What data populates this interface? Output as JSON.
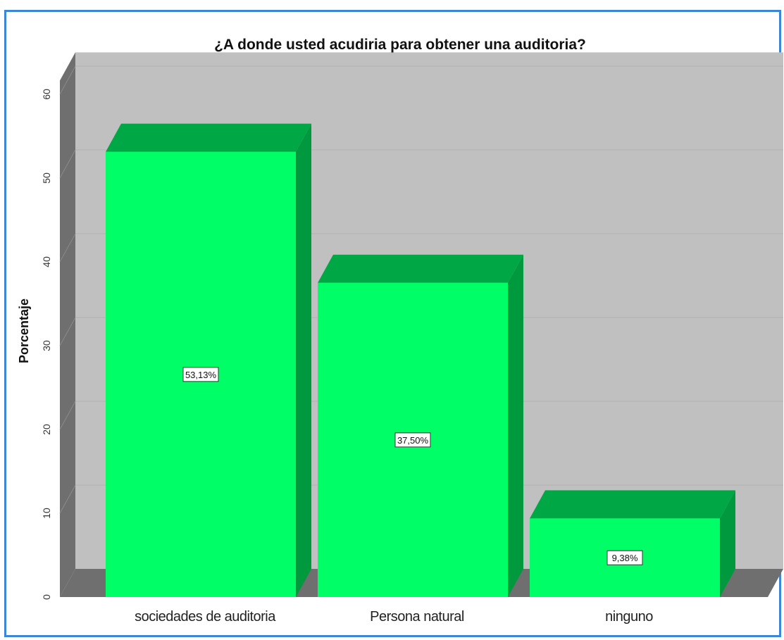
{
  "chart_data": {
    "type": "bar",
    "title": "¿A donde usted acudiria para obtener una auditoria?",
    "xlabel": "",
    "ylabel": "Porcentaje",
    "ylim": [
      0,
      65
    ],
    "yticks": [
      0,
      10,
      20,
      30,
      40,
      50,
      60
    ],
    "yticks_labels": [
      "0",
      "10",
      "20",
      "30",
      "40",
      "50",
      "60"
    ],
    "categories": [
      "sociedades de auditoria",
      "Persona natural",
      "ninguno"
    ],
    "values": [
      53.13,
      37.5,
      9.38
    ],
    "data_labels": [
      "53,13%",
      "37,50%",
      "9,38%"
    ],
    "grid": true,
    "style": "3d",
    "colors": {
      "bar_front": "#00ff66",
      "bar_top": "#00a845",
      "bar_side": "#00993d",
      "plot_back": "#c0c0c0",
      "plot_wall": "#6f6f6f",
      "frame_border": "#3b87d6"
    }
  }
}
